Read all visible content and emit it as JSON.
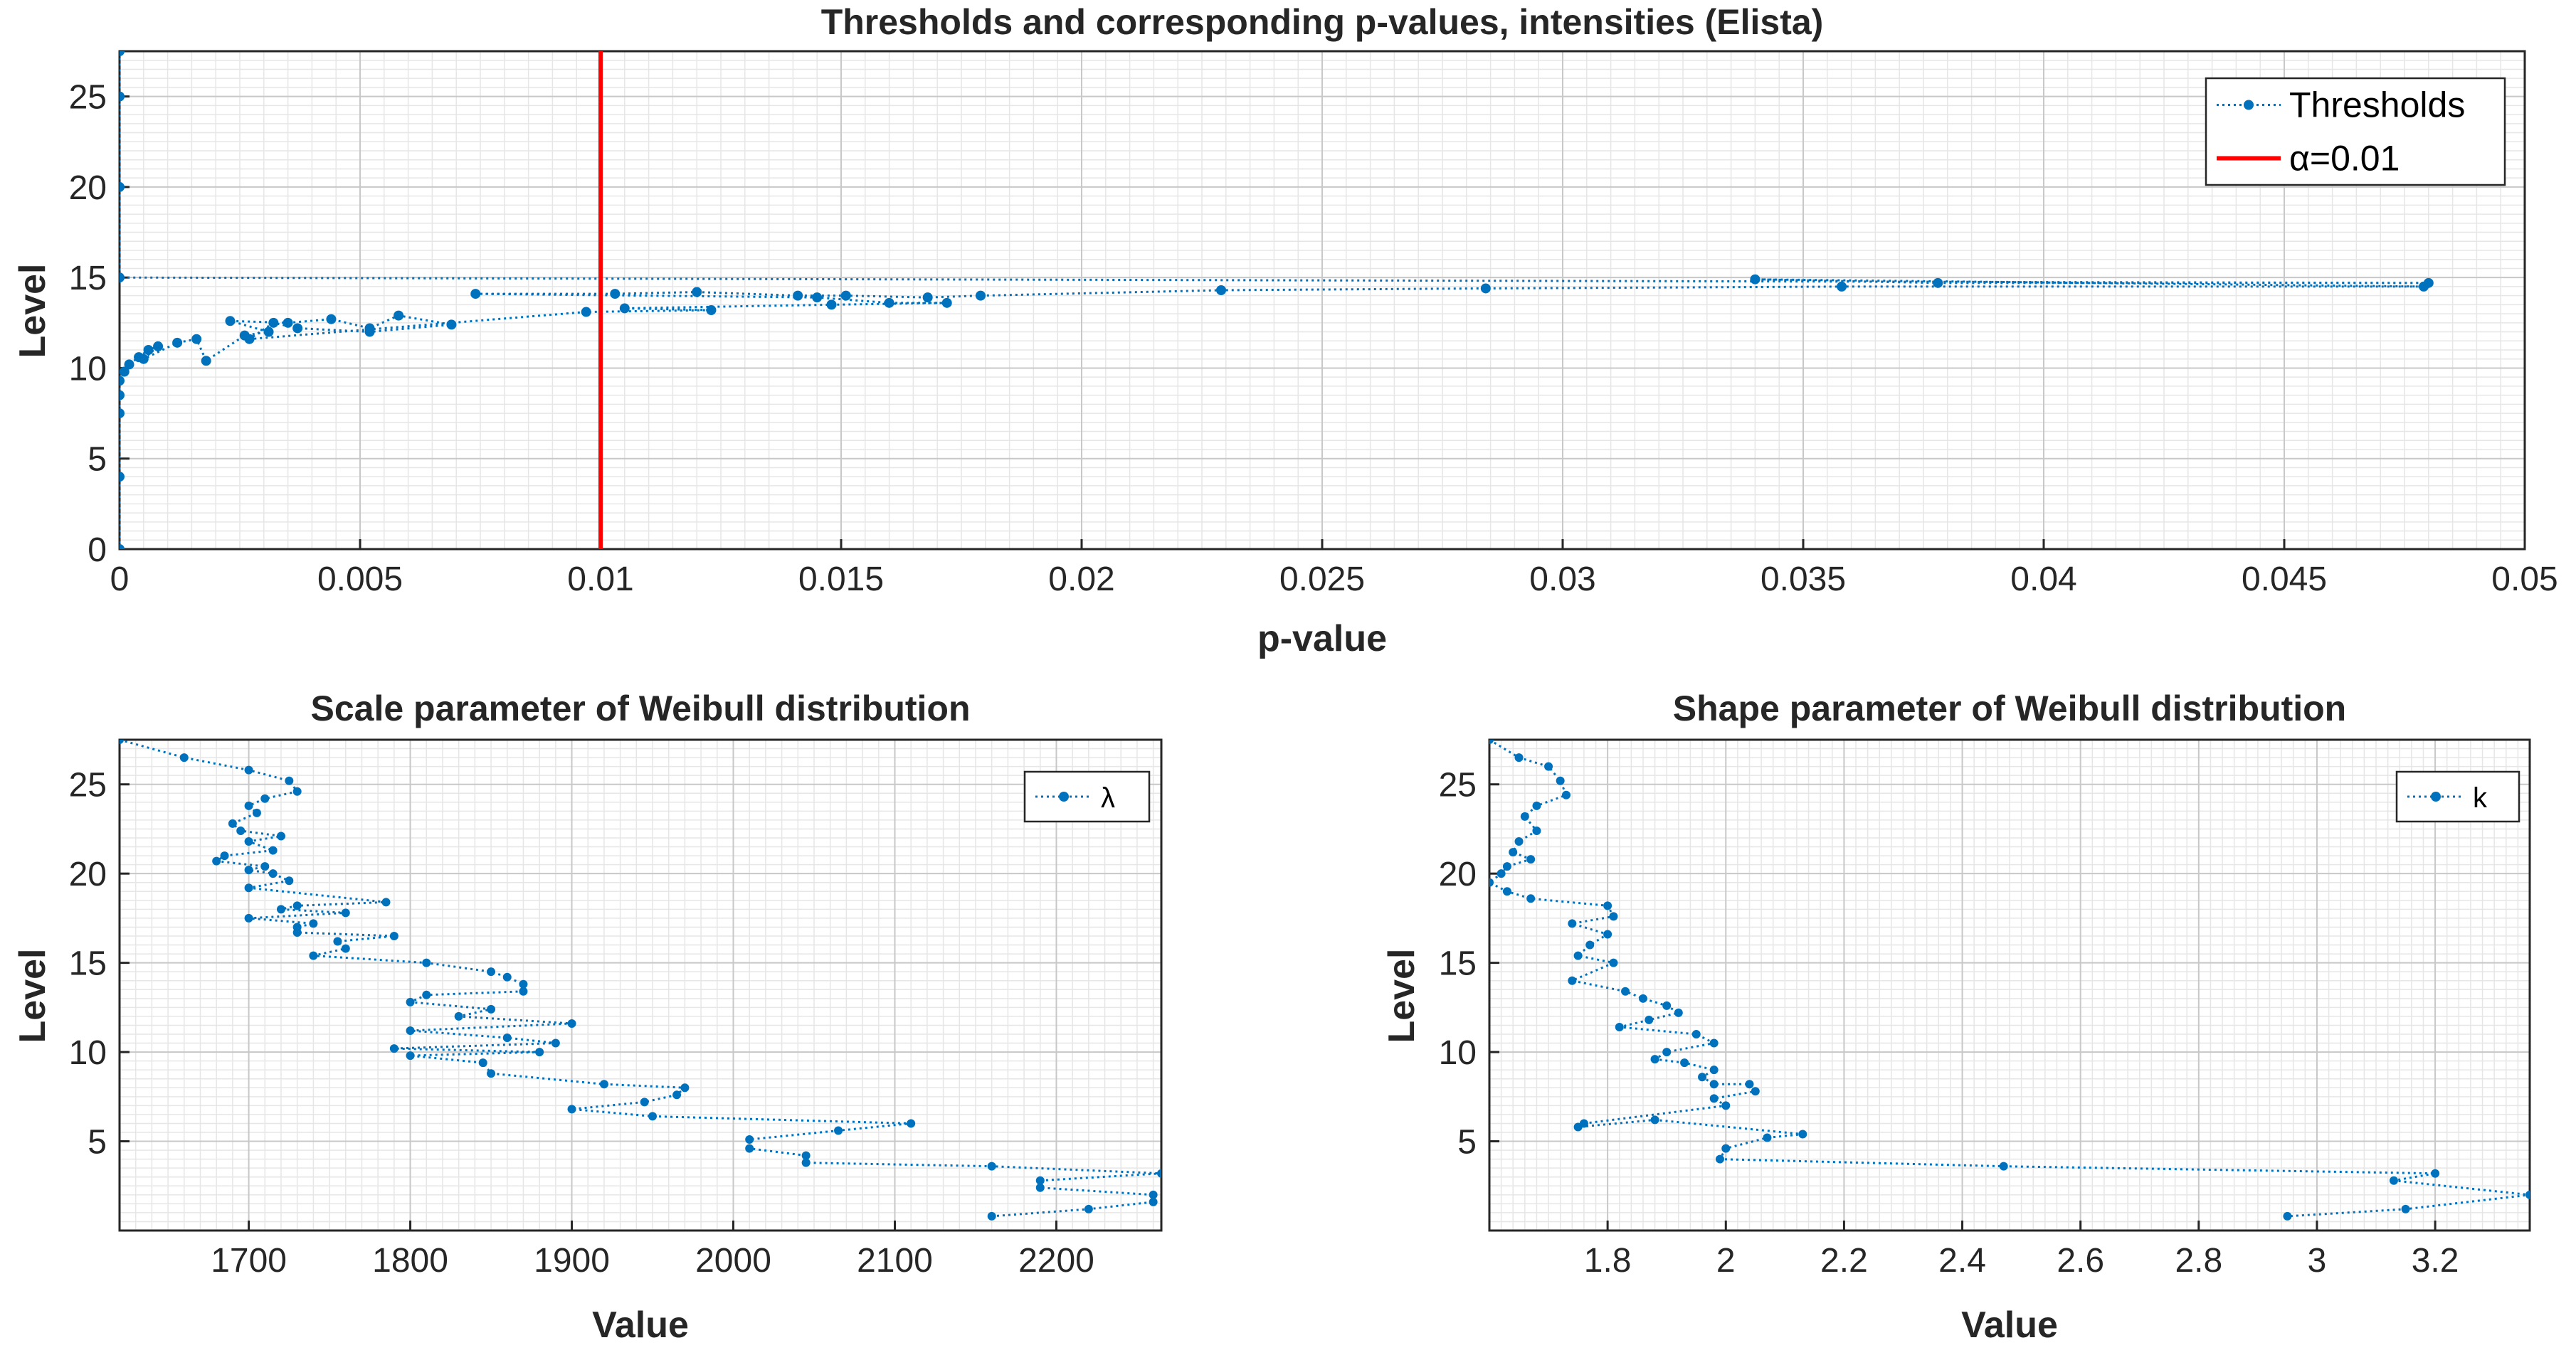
{
  "chart_data": [
    {
      "type": "line",
      "title": "Thresholds and corresponding p-values, intensities (Elista)",
      "xlabel": "p-value",
      "ylabel": "Level",
      "xlim": [
        0,
        0.05
      ],
      "ylim": [
        0,
        27.5
      ],
      "xticks": [
        "0",
        "0.005",
        "0.01",
        "0.015",
        "0.02",
        "0.025",
        "0.03",
        "0.035",
        "0.04",
        "0.045",
        "0.05"
      ],
      "yticks": [
        "0",
        "5",
        "10",
        "15",
        "20",
        "25"
      ],
      "grid": true,
      "legend_location": "top-right",
      "series": [
        {
          "name": "Thresholds",
          "color": "#0072BD",
          "style": "dotted-with-markers",
          "x": [
            0,
            0,
            0,
            0,
            0,
            0.0001,
            0.0002,
            0.0004,
            0.0006,
            0.0008,
            0.0005,
            0.0012,
            0.0016,
            0.0018,
            0.0026,
            0.0031,
            0.0023,
            0.0035,
            0.0044,
            0.0052,
            0.0058,
            0.0069,
            0.0052,
            0.0037,
            0.0032,
            0.0027,
            0.0097,
            0.0123,
            0.0105,
            0.0148,
            0.0172,
            0.016,
            0.0145,
            0.0074,
            0.0103,
            0.012,
            0.0141,
            0.0151,
            0.0168,
            0.0179,
            0.0229,
            0.0284,
            0.0358,
            0.0479,
            0.034,
            0.0378,
            0.048,
            0,
            0,
            0,
            0
          ],
          "y": [
            0,
            4,
            7.5,
            8.5,
            9.3,
            9.8,
            10.2,
            10.6,
            11.0,
            11.2,
            10.5,
            11.4,
            11.6,
            10.4,
            11.8,
            12.0,
            12.6,
            12.5,
            12.7,
            12.2,
            12.9,
            12.4,
            12.0,
            12.2,
            12.5,
            11.6,
            13.1,
            13.2,
            13.3,
            13.5,
            13.6,
            13.6,
            13.9,
            14.1,
            14.1,
            14.2,
            14.0,
            14.0,
            13.9,
            14.0,
            14.3,
            14.4,
            14.5,
            14.5,
            14.9,
            14.7,
            14.7,
            15,
            20,
            25,
            27.5
          ]
        },
        {
          "name": "α=0.01",
          "color": "#FF0000",
          "style": "solid",
          "x": [
            0.01,
            0.01
          ],
          "y": [
            0,
            27.5
          ]
        }
      ]
    },
    {
      "type": "line",
      "title": "Scale parameter of Weibull distribution",
      "xlabel": "Value",
      "ylabel": "Level",
      "xlim": [
        1620,
        2265
      ],
      "ylim": [
        0,
        27.5
      ],
      "xticks": [
        "1700",
        "1800",
        "1900",
        "2000",
        "2100",
        "2200"
      ],
      "yticks": [
        "5",
        "10",
        "15",
        "20",
        "25"
      ],
      "grid": true,
      "legend_location": "top-right",
      "series": [
        {
          "name": "λ",
          "color": "#0072BD",
          "style": "dotted-with-markers",
          "x": [
            1620,
            1660,
            1700,
            1725,
            1730,
            1710,
            1700,
            1705,
            1690,
            1695,
            1720,
            1700,
            1715,
            1685,
            1680,
            1710,
            1700,
            1715,
            1725,
            1700,
            1785,
            1730,
            1720,
            1760,
            1700,
            1740,
            1730,
            1730,
            1790,
            1755,
            1760,
            1740,
            1810,
            1850,
            1860,
            1870,
            1870,
            1810,
            1800,
            1850,
            1830,
            1900,
            1800,
            1860,
            1890,
            1790,
            1880,
            1800,
            1845,
            1850,
            1920,
            1970,
            1965,
            1945,
            1900,
            1950,
            2110,
            2065,
            2010,
            2010,
            2045,
            2045,
            2160,
            2265,
            2190,
            2190,
            2260,
            2260,
            2220,
            2160
          ],
          "y": [
            27.5,
            26.5,
            25.8,
            25.2,
            24.6,
            24.2,
            23.8,
            23.4,
            22.8,
            22.4,
            22.1,
            21.8,
            21.3,
            21.0,
            20.7,
            20.4,
            20.2,
            20.0,
            19.6,
            19.2,
            18.4,
            18.2,
            18.0,
            17.8,
            17.5,
            17.2,
            17.0,
            16.7,
            16.5,
            16.2,
            15.8,
            15.4,
            15.0,
            14.5,
            14.2,
            13.8,
            13.4,
            13.2,
            12.8,
            12.4,
            12.0,
            11.6,
            11.2,
            10.8,
            10.5,
            10.2,
            10.0,
            9.8,
            9.4,
            8.8,
            8.2,
            8.0,
            7.6,
            7.2,
            6.8,
            6.4,
            6.0,
            5.6,
            5.1,
            4.6,
            4.2,
            3.8,
            3.6,
            3.2,
            2.8,
            2.4,
            2.0,
            1.6,
            1.2,
            0.8
          ]
        }
      ]
    },
    {
      "type": "line",
      "title": "Shape parameter of Weibull distribution",
      "xlabel": "Value",
      "ylabel": "Level",
      "xlim": [
        1.6,
        3.36
      ],
      "ylim": [
        0,
        27.5
      ],
      "xticks": [
        "1.8",
        "2",
        "2.2",
        "2.4",
        "2.6",
        "2.8",
        "3",
        "3.2"
      ],
      "yticks": [
        "5",
        "10",
        "15",
        "20",
        "25"
      ],
      "grid": true,
      "legend_location": "top-right",
      "series": [
        {
          "name": "k",
          "color": "#0072BD",
          "style": "dotted-with-markers",
          "x": [
            1.6,
            1.65,
            1.7,
            1.72,
            1.73,
            1.68,
            1.66,
            1.68,
            1.65,
            1.64,
            1.67,
            1.63,
            1.62,
            1.6,
            1.63,
            1.67,
            1.8,
            1.81,
            1.74,
            1.8,
            1.77,
            1.75,
            1.81,
            1.74,
            1.83,
            1.86,
            1.9,
            1.92,
            1.87,
            1.82,
            1.95,
            1.98,
            1.9,
            1.88,
            1.93,
            1.98,
            1.96,
            1.98,
            2.04,
            2.05,
            1.98,
            2.0,
            1.76,
            1.75,
            1.88,
            2.13,
            2.07,
            2.0,
            1.99,
            2.47,
            3.2,
            3.13,
            3.36,
            3.15,
            2.95
          ],
          "y": [
            27.5,
            26.5,
            26.0,
            25.2,
            24.4,
            23.8,
            23.2,
            22.4,
            21.8,
            21.2,
            20.8,
            20.4,
            20.0,
            19.5,
            19.0,
            18.6,
            18.2,
            17.6,
            17.2,
            16.6,
            16.0,
            15.4,
            15.0,
            14.0,
            13.4,
            13.0,
            12.6,
            12.2,
            11.8,
            11.4,
            11.0,
            10.5,
            10.0,
            9.6,
            9.4,
            9.0,
            8.6,
            8.2,
            8.2,
            7.8,
            7.4,
            7.0,
            6.0,
            5.8,
            6.2,
            5.4,
            5.2,
            4.6,
            4.0,
            3.6,
            3.2,
            2.8,
            2.0,
            1.2,
            0.8
          ]
        }
      ]
    }
  ]
}
